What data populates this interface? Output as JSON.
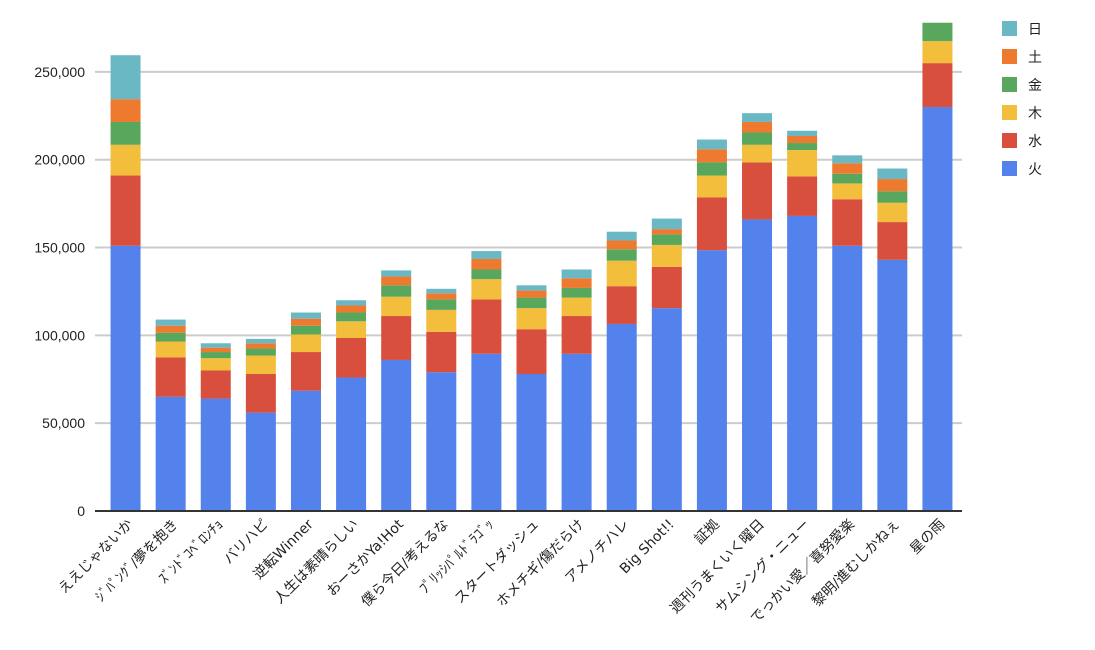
{
  "chart_data": {
    "type": "bar",
    "stacked": true,
    "title": "",
    "xlabel": "",
    "ylabel": "",
    "ylim": [
      0,
      275000
    ],
    "yticks": [
      0,
      50000,
      100000,
      150000,
      200000,
      250000
    ],
    "ytick_labels": [
      "0",
      "50,000",
      "100,000",
      "150,000",
      "200,000",
      "250,000"
    ],
    "grid": true,
    "legend_position": "top-right",
    "categories": [
      "ええじゃないか",
      "ｼﾞﾊﾟﾝｸﾞ/夢を抱き",
      "ｽﾞﾝﾄﾞｺﾍﾞﾛﾝﾁｮ",
      "バリハピ",
      "逆転Winner",
      "人生は素晴らしい",
      "おーさかYa!Hot",
      "僕ら今日/考えるな",
      "ﾌﾟﾘｯｼﾊﾟﾙﾄﾞﾗｺﾞｯ",
      "スタートダッシュ",
      "ホメチギ/傷だらけ",
      "アメノチハレ",
      "Big Shot!!",
      "証拠",
      "週刊うまくいく曜日",
      "サムシング・ニュー",
      "でっかい愛／喜努愛楽",
      "黎明/進むしかねぇ",
      "星の雨"
    ],
    "series": [
      {
        "name": "火",
        "color": "#5382ec",
        "values": [
          151000,
          65000,
          64000,
          56000,
          68500,
          76000,
          86000,
          79000,
          89500,
          78000,
          89500,
          106500,
          115500,
          148500,
          166000,
          168000,
          151000,
          143000,
          230000
        ]
      },
      {
        "name": "水",
        "color": "#d84f3e",
        "values": [
          40000,
          22500,
          16000,
          22000,
          22000,
          22500,
          25000,
          23000,
          31000,
          25500,
          21500,
          21500,
          23500,
          30000,
          32500,
          22500,
          26500,
          21500,
          25000
        ]
      },
      {
        "name": "木",
        "color": "#f3be3c",
        "values": [
          17500,
          9000,
          7000,
          10500,
          10000,
          9500,
          11000,
          12500,
          11500,
          12000,
          10500,
          14500,
          12500,
          12500,
          10000,
          15000,
          9000,
          11000,
          12500
        ]
      },
      {
        "name": "金",
        "color": "#58a75d",
        "values": [
          13000,
          5000,
          3500,
          4000,
          5000,
          5000,
          6500,
          6000,
          5500,
          6000,
          5500,
          6500,
          6000,
          7500,
          7000,
          4000,
          5500,
          6500,
          10500
        ]
      },
      {
        "name": "土",
        "color": "#ee7a2f",
        "values": [
          13000,
          4000,
          2500,
          3000,
          4000,
          4000,
          5000,
          3500,
          6000,
          4000,
          5500,
          5000,
          3000,
          7500,
          6000,
          4000,
          6000,
          7000,
          0
        ]
      },
      {
        "name": "日",
        "color": "#6bb8c5",
        "values": [
          25000,
          3500,
          2500,
          2500,
          3500,
          3000,
          3500,
          2500,
          4500,
          3000,
          5000,
          5000,
          6000,
          5500,
          5000,
          3000,
          4500,
          6000,
          0
        ]
      }
    ]
  }
}
